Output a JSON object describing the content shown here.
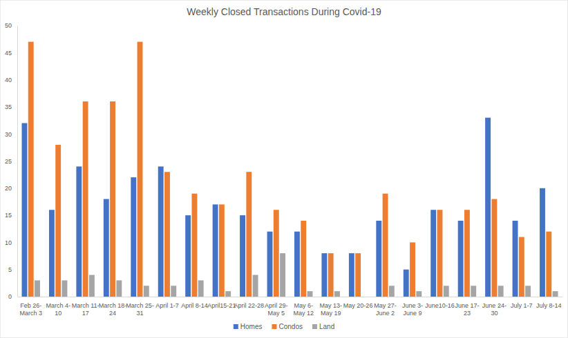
{
  "chart_data": {
    "type": "bar",
    "title": "Weekly Closed Transactions During Covid-19",
    "categories": [
      "Feb 26-March 3",
      "March 4-10",
      "March 11-17",
      "March 18-24",
      "March 25-31",
      "April 1-7",
      "April 8-14",
      "April15-21",
      "April 22-28",
      "April 29-May 5",
      "May 6-May 12",
      "May 13-May 19",
      "May 20-26",
      "May 27-June 2",
      "June 3-June 9",
      "June10-16",
      "June 17-23",
      "June 24-30",
      "July 1-7",
      "July 8-14"
    ],
    "series": [
      {
        "name": "Homes",
        "color": "#4472c4",
        "values": [
          32,
          16,
          24,
          18,
          22,
          24,
          15,
          17,
          15,
          12,
          12,
          8,
          8,
          14,
          5,
          16,
          14,
          33,
          14,
          20
        ]
      },
      {
        "name": "Condos",
        "color": "#ed7d31",
        "values": [
          47,
          28,
          36,
          36,
          47,
          23,
          19,
          17,
          23,
          16,
          14,
          8,
          8,
          19,
          10,
          16,
          16,
          18,
          11,
          12
        ]
      },
      {
        "name": "Land",
        "color": "#a5a5a5",
        "values": [
          3,
          3,
          4,
          3,
          2,
          2,
          3,
          1,
          4,
          8,
          1,
          1,
          0,
          2,
          1,
          2,
          2,
          2,
          2,
          1
        ]
      }
    ],
    "ylim": [
      0,
      50
    ],
    "yticks": [
      0,
      5,
      10,
      15,
      20,
      25,
      30,
      35,
      40,
      45,
      50
    ],
    "grid": false,
    "legend": "bottom"
  }
}
